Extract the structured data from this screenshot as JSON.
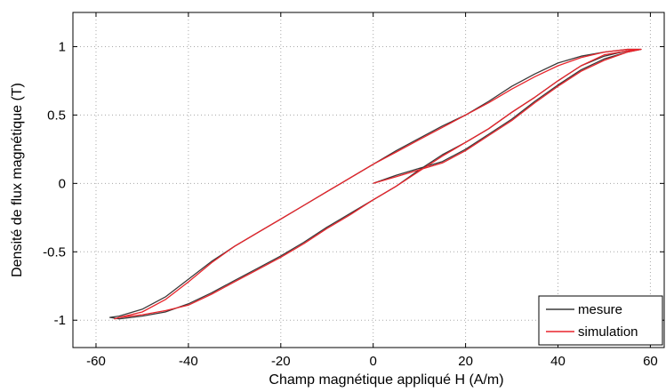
{
  "chart_data": {
    "type": "line",
    "xlabel": "Champ magnétique appliqué H (A/m)",
    "ylabel": "Densité de flux magnétique (T)",
    "xlim": [
      -65,
      63
    ],
    "ylim": [
      -1.2,
      1.25
    ],
    "x_ticks": [
      -60,
      -40,
      -20,
      0,
      20,
      40,
      60
    ],
    "y_ticks": [
      1,
      0.5,
      0,
      -0.5,
      -1
    ],
    "x_tick_labels": [
      "-60",
      "-40",
      "-20",
      "0",
      "20",
      "40",
      "60"
    ],
    "y_tick_labels": [
      "1",
      "0.5",
      "0",
      "-0.5",
      "-1"
    ],
    "grid": true,
    "legend_position": "bottom-right",
    "series": [
      {
        "name": "mesure",
        "color": "#3a3a3a",
        "x": [
          0,
          5,
          10,
          15,
          20,
          25,
          30,
          35,
          40,
          45,
          50,
          55,
          58,
          55,
          50,
          45,
          40,
          35,
          30,
          25,
          20,
          15,
          10,
          5,
          0,
          -5,
          -10,
          -15,
          -20,
          -25,
          -30,
          -35,
          -40,
          -45,
          -50,
          -55,
          -57,
          -55,
          -50,
          -45,
          -40,
          -35,
          -30,
          -25,
          -20,
          -15,
          -10,
          -5,
          0,
          5,
          10,
          15,
          20,
          25,
          30,
          35,
          40,
          45,
          50,
          55,
          58
        ],
        "y": [
          0,
          0.06,
          0.11,
          0.16,
          0.25,
          0.36,
          0.47,
          0.6,
          0.72,
          0.83,
          0.91,
          0.96,
          0.98,
          0.98,
          0.96,
          0.93,
          0.88,
          0.8,
          0.71,
          0.6,
          0.5,
          0.42,
          0.33,
          0.24,
          0.14,
          0.04,
          -0.06,
          -0.16,
          -0.26,
          -0.36,
          -0.46,
          -0.57,
          -0.7,
          -0.83,
          -0.92,
          -0.97,
          -0.98,
          -0.99,
          -0.97,
          -0.94,
          -0.88,
          -0.8,
          -0.71,
          -0.62,
          -0.53,
          -0.43,
          -0.32,
          -0.22,
          -0.12,
          -0.02,
          0.1,
          0.21,
          0.3,
          0.4,
          0.52,
          0.63,
          0.75,
          0.86,
          0.93,
          0.97,
          0.98
        ]
      },
      {
        "name": "simulation",
        "color": "#e8242b",
        "x": [
          0,
          5,
          10,
          15,
          20,
          25,
          30,
          35,
          40,
          45,
          50,
          55,
          58,
          55,
          50,
          45,
          40,
          35,
          30,
          25,
          20,
          15,
          10,
          5,
          0,
          -5,
          -10,
          -15,
          -20,
          -25,
          -30,
          -35,
          -40,
          -45,
          -50,
          -55,
          -56,
          -55,
          -50,
          -45,
          -40,
          -35,
          -30,
          -25,
          -20,
          -15,
          -10,
          -5,
          0,
          5,
          10,
          15,
          20,
          25,
          30,
          35,
          40,
          45,
          50,
          55,
          58
        ],
        "y": [
          0,
          0.05,
          0.1,
          0.15,
          0.24,
          0.35,
          0.46,
          0.59,
          0.71,
          0.82,
          0.9,
          0.96,
          0.98,
          0.98,
          0.96,
          0.92,
          0.86,
          0.78,
          0.69,
          0.59,
          0.5,
          0.41,
          0.32,
          0.23,
          0.14,
          0.04,
          -0.06,
          -0.16,
          -0.26,
          -0.36,
          -0.46,
          -0.58,
          -0.72,
          -0.85,
          -0.94,
          -0.98,
          -0.99,
          -0.98,
          -0.96,
          -0.93,
          -0.89,
          -0.81,
          -0.72,
          -0.63,
          -0.54,
          -0.44,
          -0.33,
          -0.23,
          -0.12,
          -0.02,
          0.09,
          0.2,
          0.3,
          0.4,
          0.52,
          0.63,
          0.75,
          0.86,
          0.94,
          0.97,
          0.98
        ]
      }
    ]
  }
}
